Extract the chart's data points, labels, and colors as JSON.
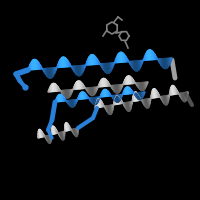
{
  "background_color": "#000000",
  "blue_color": "#2980d9",
  "gray_color": "#a0a0a0",
  "dark_gray": "#505050",
  "molecule_color": "#808080",
  "fig_size": [
    2.0,
    2.0
  ],
  "dpi": 100
}
